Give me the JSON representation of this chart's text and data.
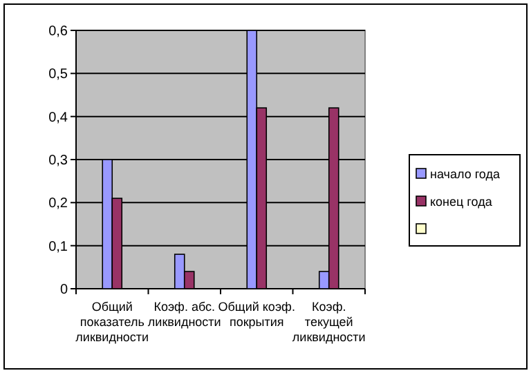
{
  "chart_data": {
    "type": "bar",
    "categories": [
      "Общий показатель ликвидности",
      "Коэф. абс. ликвидности",
      "Общий коэф. покрытия",
      "Коэф. текущей ликвидности"
    ],
    "series": [
      {
        "name": "начало года",
        "color": "#9999ff",
        "values": [
          0.3,
          0.08,
          0.6,
          0.04
        ]
      },
      {
        "name": "конец года",
        "color": "#993366",
        "values": [
          0.21,
          0.04,
          0.42,
          0.42
        ]
      },
      {
        "color": "#ffffcc",
        "values": [
          null,
          null,
          null,
          null
        ]
      }
    ],
    "ylim": [
      0,
      0.6
    ],
    "yticks": [
      0,
      {
        "value": 0.1,
        "label": "0,1"
      },
      {
        "value": 0.2,
        "label": "0,2"
      },
      {
        "value": 0.3,
        "label": "0,3"
      },
      {
        "value": 0.4,
        "label": "0,4"
      },
      {
        "value": 0.5,
        "label": "0,5"
      },
      {
        "value": 0.6,
        "label": "0,6"
      }
    ],
    "grid": "y",
    "legend": "right"
  }
}
